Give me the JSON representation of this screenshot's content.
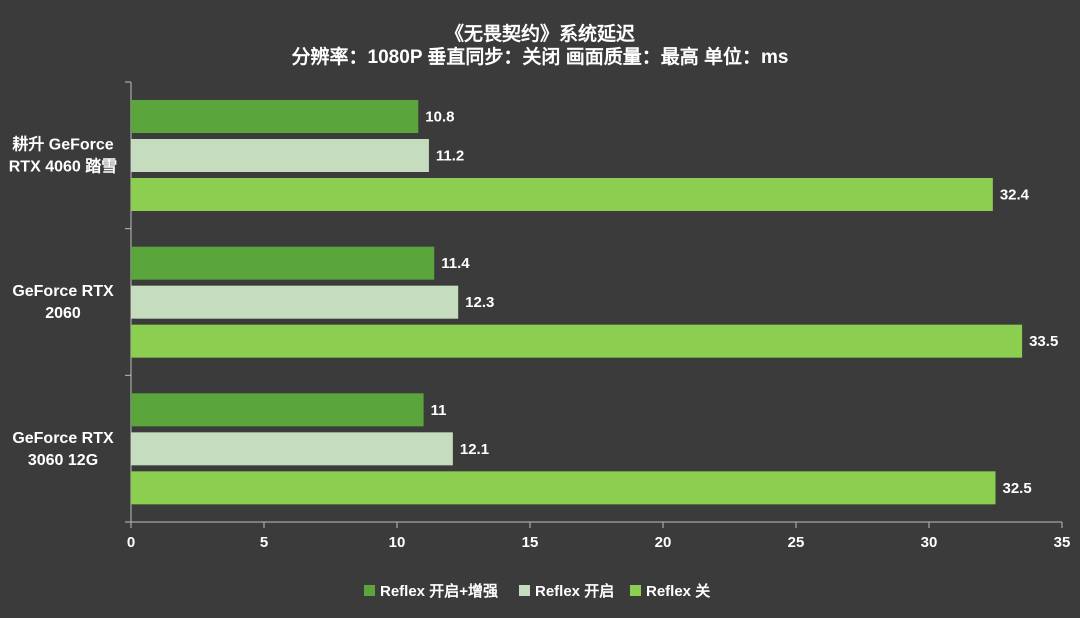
{
  "chart_data": {
    "type": "bar",
    "orientation": "horizontal",
    "title": "《无畏契约》系统延迟",
    "subtitle": "分辨率：1080P 垂直同步：关闭  画面质量：最高  单位：ms",
    "categories": [
      "耕升 GeForce RTX 4060 踏雪",
      "GeForce RTX 2060",
      "GeForce RTX 3060 12G"
    ],
    "category_lines": [
      [
        "耕升 GeForce",
        "RTX 4060 踏雪"
      ],
      [
        "GeForce RTX",
        "2060"
      ],
      [
        "GeForce RTX",
        "3060 12G"
      ]
    ],
    "series": [
      {
        "name": "Reflex 开启+增强",
        "values": [
          10.8,
          11.4,
          11
        ],
        "labels": [
          "10.8",
          "11.4",
          "11"
        ],
        "color": "#5aa63c"
      },
      {
        "name": "Reflex 开启",
        "values": [
          11.2,
          12.3,
          12.1
        ],
        "labels": [
          "11.2",
          "12.3",
          "12.1"
        ],
        "color": "#c6dcbe"
      },
      {
        "name": "Reflex 关",
        "values": [
          32.4,
          33.5,
          32.5
        ],
        "labels": [
          "32.4",
          "33.5",
          "32.5"
        ],
        "color": "#8ccf50"
      }
    ],
    "x_ticks": [
      "0",
      "5",
      "10",
      "15",
      "20",
      "25",
      "30",
      "35"
    ],
    "xlim": [
      0,
      35
    ],
    "legend_position": "bottom",
    "grid": false
  }
}
